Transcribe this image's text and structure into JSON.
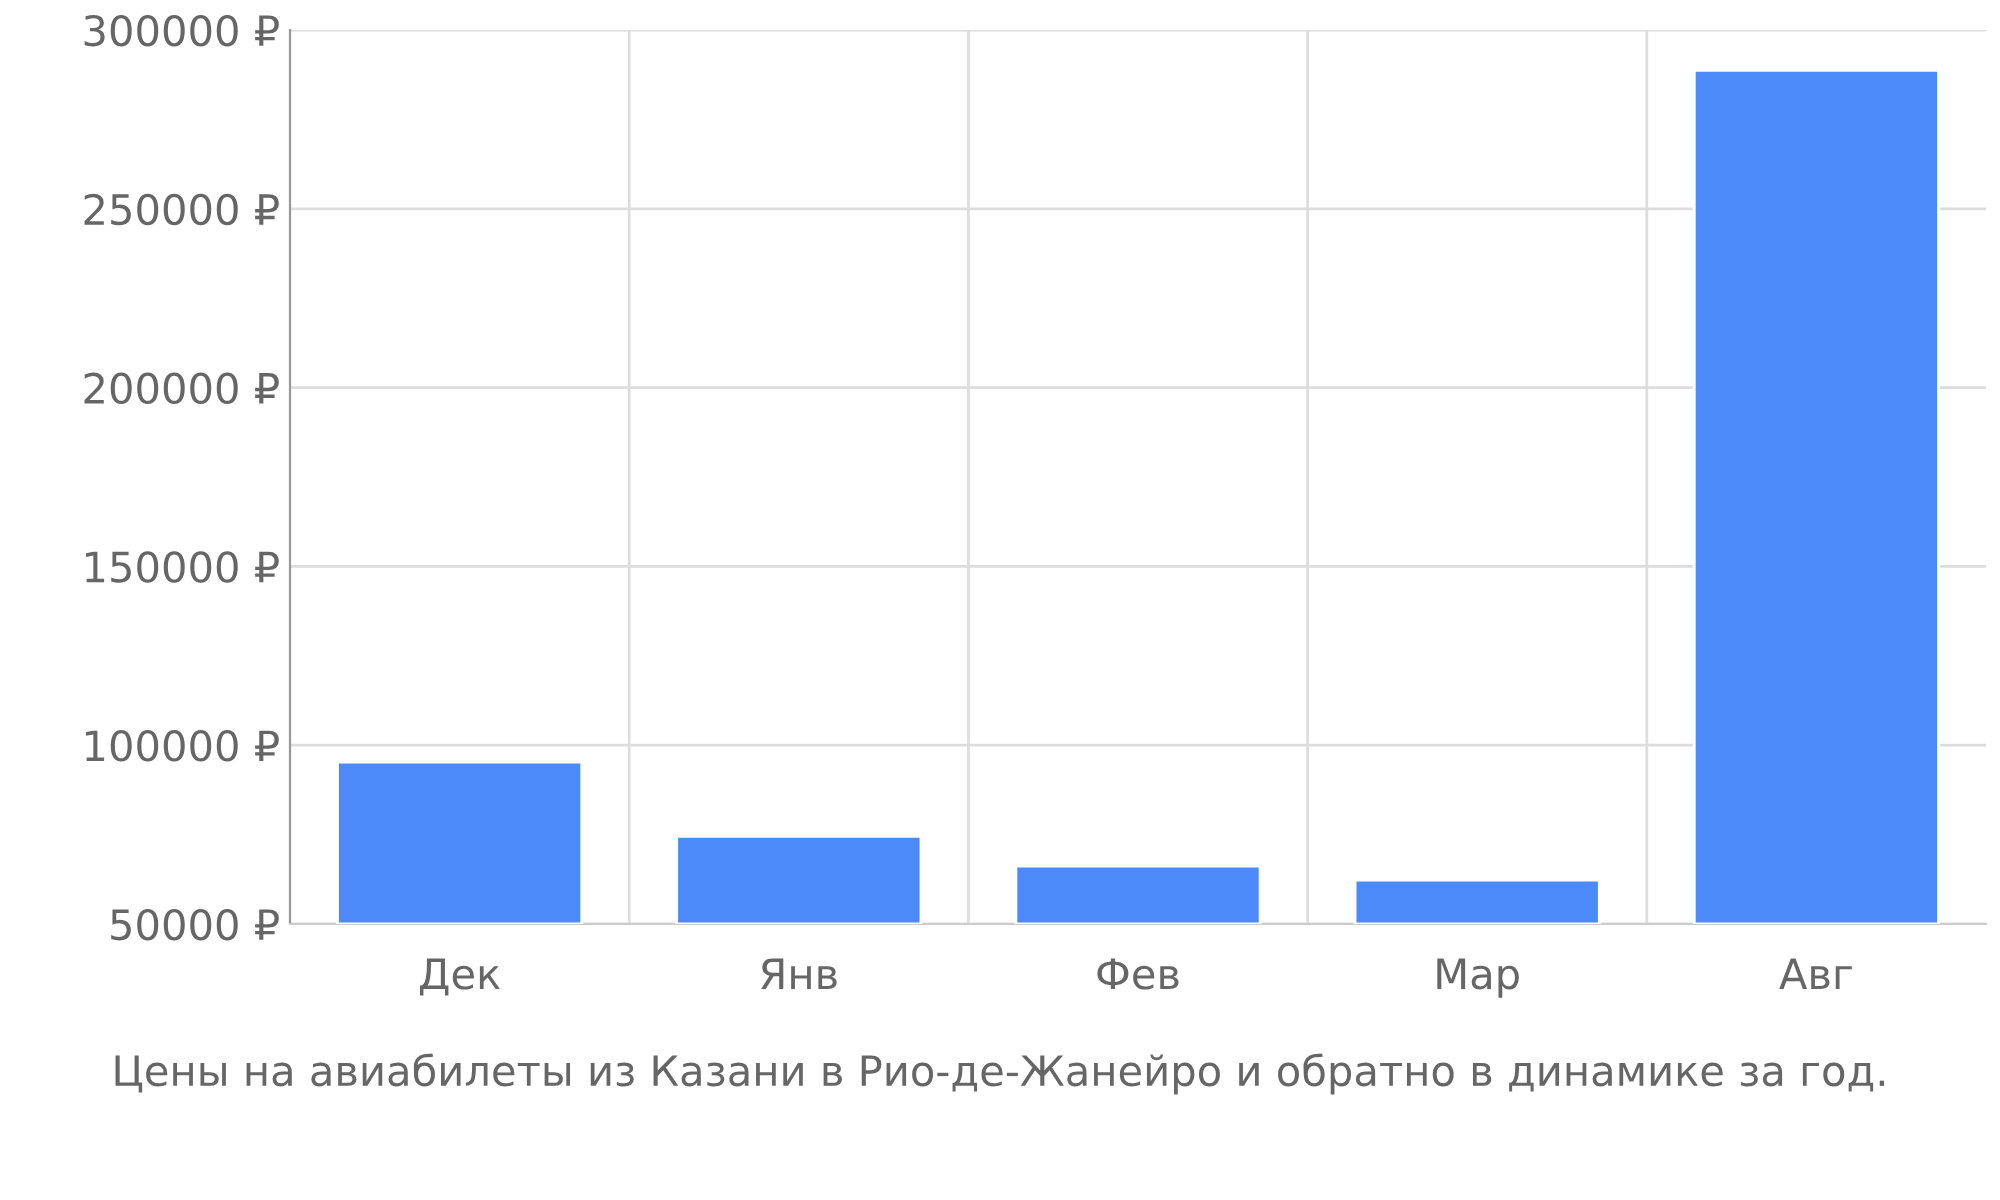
{
  "chart_data": {
    "type": "bar",
    "categories": [
      "Дек",
      "Янв",
      "Фев",
      "Мар",
      "Авг"
    ],
    "values": [
      95300,
      74500,
      66200,
      62300,
      288700
    ],
    "color": "#4d8af9",
    "ylim": [
      50000,
      300000
    ],
    "yticks": [
      {
        "value": 50000,
        "label": "50000 ₽"
      },
      {
        "value": 100000,
        "label": "100000 ₽"
      },
      {
        "value": 150000,
        "label": "150000 ₽"
      },
      {
        "value": 200000,
        "label": "200000 ₽"
      },
      {
        "value": 250000,
        "label": "250000 ₽"
      },
      {
        "value": 300000,
        "label": "300000 ₽"
      }
    ],
    "grid": true,
    "annotations": [
      "Цены на авиабилеты из Казани в Рио-де-Жанейро и обратно в динамике за год."
    ]
  }
}
